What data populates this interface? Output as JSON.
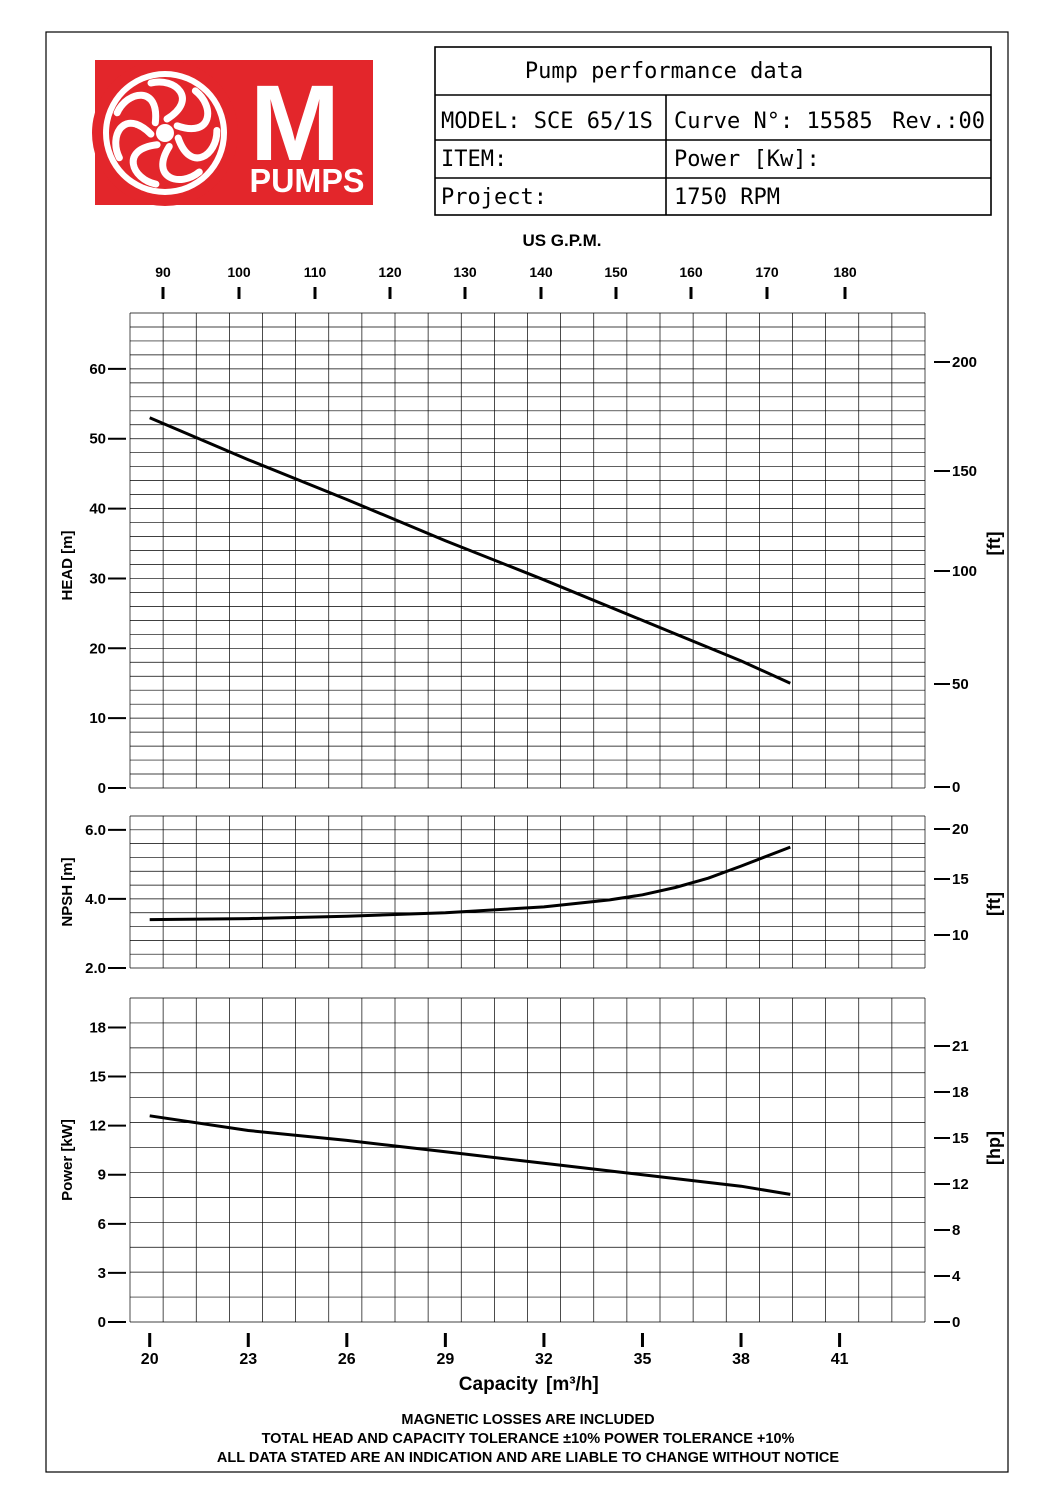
{
  "title_block": {
    "header": "Pump performance data",
    "model": "MODEL: SCE 65/1S",
    "curve": "Curve N°: 15585",
    "rev": "Rev.:00",
    "item": "ITEM:",
    "power": "Power [Kw]:",
    "project": "Project:",
    "rpm": "1750 RPM"
  },
  "logo": {
    "letter": "M",
    "word": "PUMPS",
    "color": "#e3262b"
  },
  "top_axis": {
    "label": "US G.P.M.",
    "ticks": [
      "90",
      "100",
      "110",
      "120",
      "130",
      "140",
      "150",
      "160",
      "170",
      "180"
    ]
  },
  "bottom_axis": {
    "label": "Capacity",
    "unit": "[m³/h]",
    "ticks": [
      "20",
      "23",
      "26",
      "29",
      "32",
      "35",
      "38",
      "41"
    ]
  },
  "notes": [
    "MAGNETIC LOSSES ARE INCLUDED",
    "TOTAL HEAD AND CAPACITY TOLERANCE ±10% POWER TOLERANCE +10%",
    "ALL DATA STATED ARE AN INDICATION AND ARE LIABLE TO CHANGE WITHOUT NOTICE"
  ],
  "chart_data": [
    {
      "type": "line",
      "ylabel": "HEAD [m]",
      "ylabel_right": "[ft]",
      "xlim": [
        19.4,
        43.6
      ],
      "ylim": [
        0,
        68
      ],
      "yticks": [
        "0",
        "10",
        "20",
        "30",
        "40",
        "50",
        "60"
      ],
      "yticks_right": [
        "0",
        "50",
        "100",
        "150",
        "200"
      ],
      "grid": true,
      "x": [
        20,
        23,
        26,
        29,
        32,
        35,
        38,
        39.5
      ],
      "y": [
        53,
        47,
        41.3,
        35.4,
        29.8,
        24,
        18.2,
        15
      ]
    },
    {
      "type": "line",
      "ylabel": "NPSH [m]",
      "ylabel_right": "[ft]",
      "xlim": [
        19.4,
        43.6
      ],
      "ylim": [
        2,
        6.4
      ],
      "yticks": [
        "2.0",
        "4.0",
        "6.0"
      ],
      "yticks_right": [
        "10",
        "15",
        "20"
      ],
      "grid": true,
      "x": [
        20,
        23,
        26,
        29,
        32,
        34,
        35,
        36,
        37,
        38,
        39.5
      ],
      "y": [
        3.4,
        3.43,
        3.5,
        3.6,
        3.77,
        3.97,
        4.12,
        4.33,
        4.6,
        4.95,
        5.5
      ]
    },
    {
      "type": "line",
      "ylabel": "Power [kW]",
      "ylabel_right": "[hp]",
      "xlim": [
        19.4,
        43.6
      ],
      "ylim": [
        0,
        19.8
      ],
      "yticks": [
        "0",
        "3",
        "6",
        "9",
        "12",
        "15",
        "18"
      ],
      "yticks_right": [
        "0",
        "4",
        "8",
        "12",
        "15",
        "18",
        "21"
      ],
      "grid": true,
      "x": [
        20,
        23,
        26,
        29,
        32,
        35,
        38,
        39.5
      ],
      "y": [
        12.6,
        11.7,
        11.1,
        10.4,
        9.7,
        9,
        8.3,
        7.8
      ]
    }
  ]
}
